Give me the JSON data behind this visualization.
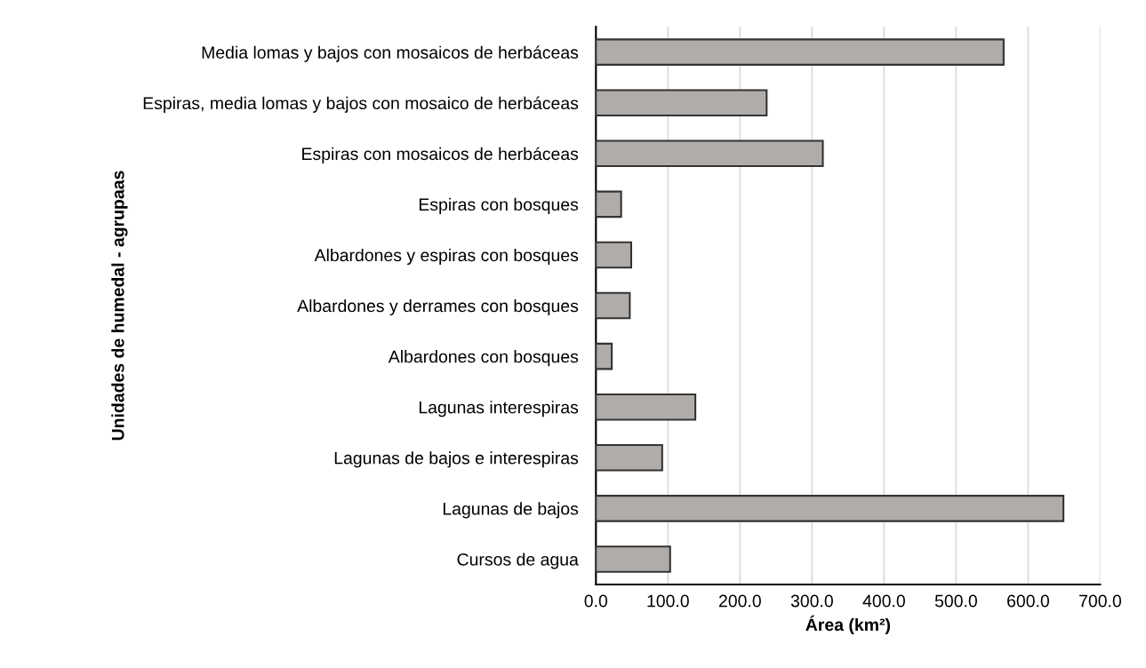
{
  "chart_data": {
    "type": "bar",
    "orientation": "horizontal",
    "xlabel": "Área (km²)",
    "ylabel": "Unidades de humedal - agrupaas",
    "categories": [
      "Media lomas y bajos con mosaicos de herbáceas",
      "Espiras, media lomas y bajos con mosaico de herbáceas",
      "Espiras con mosaicos de herbáceas",
      "Espiras con bosques",
      "Albardones y espiras con bosques",
      "Albardones y derrames con bosques",
      "Albardones con bosques",
      "Lagunas interespiras",
      "Lagunas de bajos e interespiras",
      "Lagunas de bajos",
      "Cursos de agua"
    ],
    "values": [
      566,
      237,
      315,
      35,
      49,
      47,
      22,
      138,
      92,
      649,
      103
    ],
    "color": "#b0aca9",
    "xlim": [
      0,
      700
    ],
    "xticks": [
      {
        "value": 0,
        "label": "0.0"
      },
      {
        "value": 100,
        "label": "100.0"
      },
      {
        "value": 200,
        "label": "200.0"
      },
      {
        "value": 300,
        "label": "300.0"
      },
      {
        "value": 400,
        "label": "400.0"
      },
      {
        "value": 500,
        "label": "500.0"
      },
      {
        "value": 600,
        "label": "600.0"
      },
      {
        "value": 700,
        "label": "700.0"
      }
    ],
    "grid": "x",
    "legend": false
  }
}
